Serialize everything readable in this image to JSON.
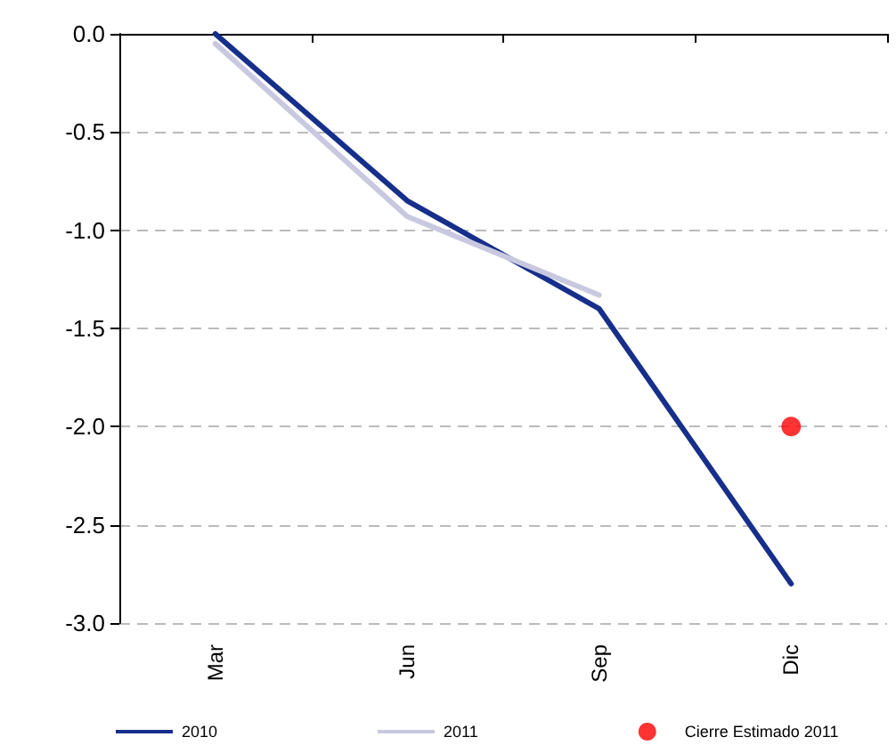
{
  "chart_data": {
    "type": "line",
    "categories": [
      "Mar",
      "Jun",
      "Sep",
      "Dic"
    ],
    "series": [
      {
        "name": "2010",
        "color": "#162f8a",
        "values": [
          0.0,
          -0.85,
          -1.4,
          -2.8
        ]
      },
      {
        "name": "2011",
        "color": "#c8c8e0",
        "values": [
          -0.05,
          -0.93,
          -1.33,
          null
        ]
      },
      {
        "name": "Cierre Estimado 2011",
        "type": "scatter",
        "marker": "circle",
        "color": "#ff0000",
        "values": [
          null,
          null,
          null,
          -2.0
        ]
      }
    ],
    "ylim": [
      -3.0,
      0.0
    ],
    "yticks": [
      {
        "value": -3,
        "label": "-3.0"
      },
      {
        "value": -2.5,
        "label": "-2.5"
      },
      {
        "value": -2,
        "label": "-2.0"
      },
      {
        "value": -1.5,
        "label": "-1.5"
      },
      {
        "value": -1,
        "label": "-1.0"
      },
      {
        "value": -0.5,
        "label": "-0.5"
      },
      {
        "value": 0,
        "label": "0.0"
      }
    ],
    "grid": "y",
    "legend": "bottom",
    "line_style": "solid"
  }
}
